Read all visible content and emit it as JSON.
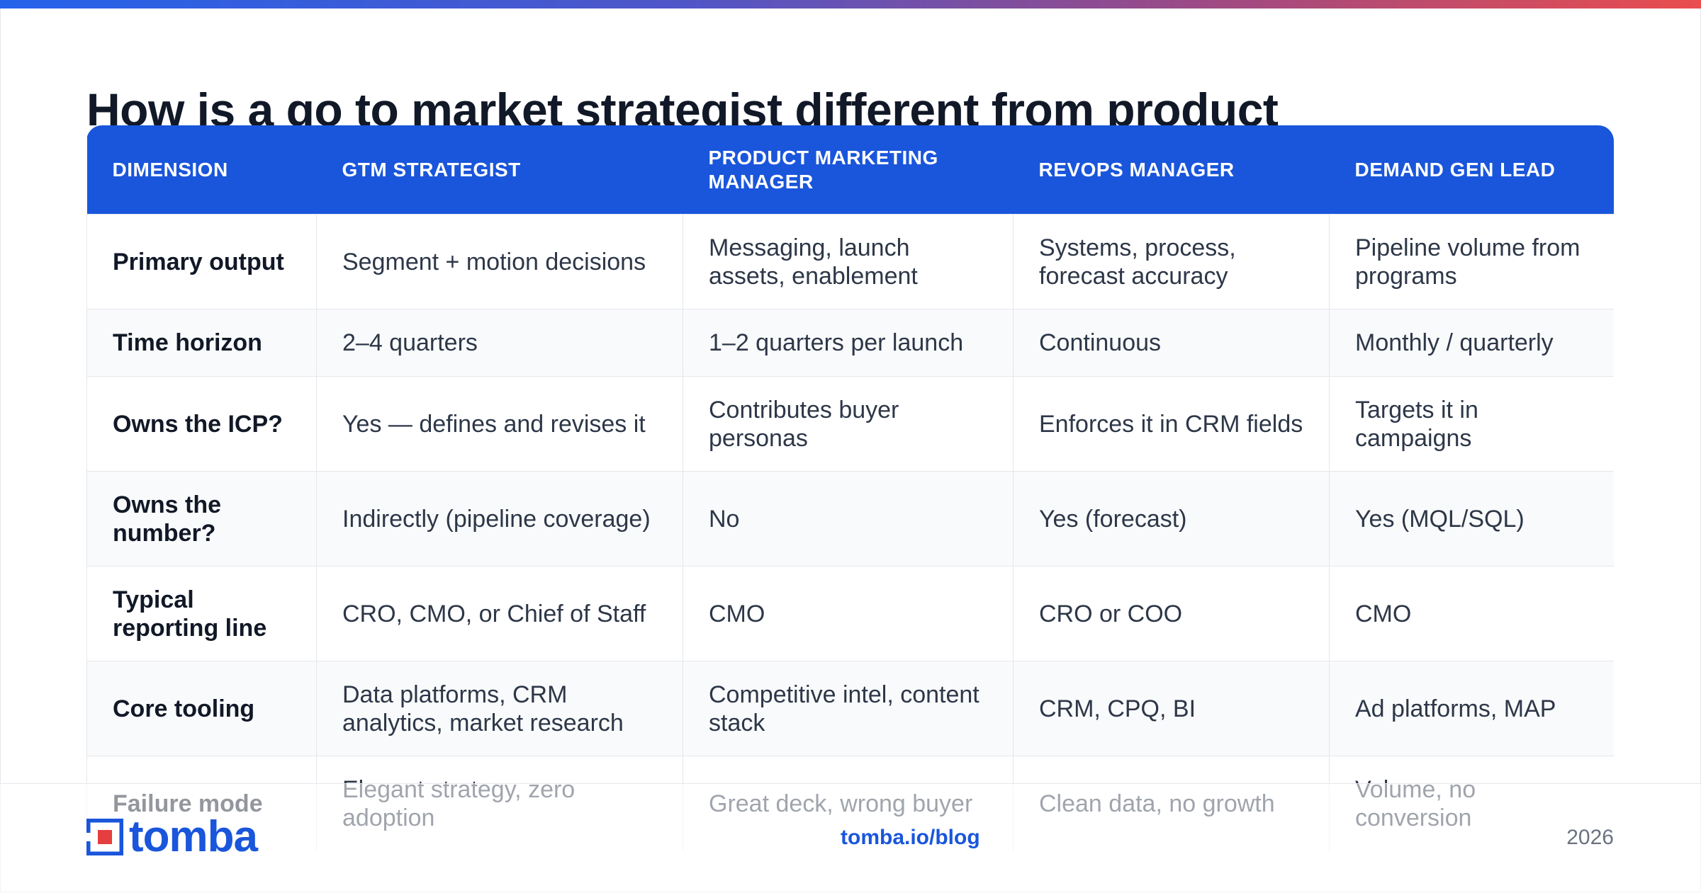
{
  "title": "How is a go to market strategist different from product",
  "table": {
    "headers": [
      "DIMENSION",
      "GTM STRATEGIST",
      "PRODUCT MARKETING MANAGER",
      "REVOPS MANAGER",
      "DEMAND GEN LEAD"
    ],
    "rows": [
      [
        "Primary output",
        "Segment + motion decisions",
        "Messaging, launch assets, enablement",
        "Systems, process, forecast accuracy",
        "Pipeline volume from programs"
      ],
      [
        "Time horizon",
        "2–4 quarters",
        "1–2 quarters per launch",
        "Continuous",
        "Monthly / quarterly"
      ],
      [
        "Owns the ICP?",
        "Yes — defines and revises it",
        "Contributes buyer personas",
        "Enforces it in CRM fields",
        "Targets it in campaigns"
      ],
      [
        "Owns the number?",
        "Indirectly (pipeline coverage)",
        "No",
        "Yes (forecast)",
        "Yes (MQL/SQL)"
      ],
      [
        "Typical reporting line",
        "CRO, CMO, or Chief of Staff",
        "CMO",
        "CRO or COO",
        "CMO"
      ],
      [
        "Core tooling",
        "Data platforms, CRM analytics, market research",
        "Competitive intel, content stack",
        "CRM, CPQ, BI",
        "Ad platforms, MAP"
      ],
      [
        "Failure mode",
        "Elegant strategy, zero adoption",
        "Great deck, wrong buyer",
        "Clean data, no growth",
        "Volume, no conversion"
      ]
    ]
  },
  "footer": {
    "logo_text": "tomba",
    "link": "tomba.io/blog",
    "year": "2026"
  },
  "colors": {
    "accent": "#1a56db",
    "gradient_start": "#2563eb",
    "gradient_end": "#ea4d4d"
  }
}
